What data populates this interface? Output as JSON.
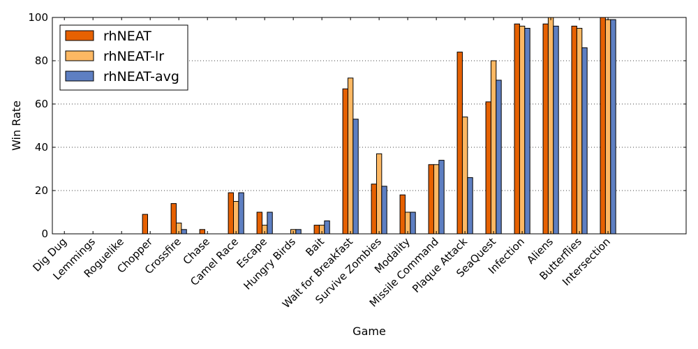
{
  "chart_data": {
    "type": "bar",
    "xlabel": "Game",
    "ylabel": "Win Rate",
    "ylim": [
      0,
      100
    ],
    "yticks": [
      0,
      20,
      40,
      60,
      80,
      100
    ],
    "grid": "horizontal-dotted",
    "legend_position": "top-left",
    "categories": [
      "Dig Dug",
      "Lemmings",
      "Roguelike",
      "Chopper",
      "Crossfire",
      "Chase",
      "Camel Race",
      "Escape",
      "Hungry Birds",
      "Bait",
      "Wait for Breakfast",
      "Survive Zombies",
      "Modality",
      "Missile Command",
      "Plaque Attack",
      "SeaQuest",
      "Infection",
      "Aliens",
      "Butterflies",
      "Intersection"
    ],
    "series": [
      {
        "name": "rhNEAT",
        "color": "#e66101",
        "values": [
          0,
          0,
          0,
          9,
          14,
          2,
          19,
          10,
          0,
          4,
          67,
          23,
          18,
          32,
          84,
          61,
          97,
          97,
          96,
          100
        ]
      },
      {
        "name": "rhNEAT-lr",
        "color": "#fdb863",
        "values": [
          0,
          0,
          0,
          0,
          5,
          0,
          15,
          4,
          2,
          4,
          72,
          37,
          10,
          32,
          54,
          80,
          96,
          100,
          95,
          99
        ]
      },
      {
        "name": "rhNEAT-avg",
        "color": "#5e7fc2",
        "values": [
          0,
          0,
          0,
          0,
          2,
          0,
          19,
          10,
          2,
          6,
          53,
          22,
          10,
          34,
          26,
          71,
          95,
          96,
          86,
          99
        ]
      }
    ]
  }
}
